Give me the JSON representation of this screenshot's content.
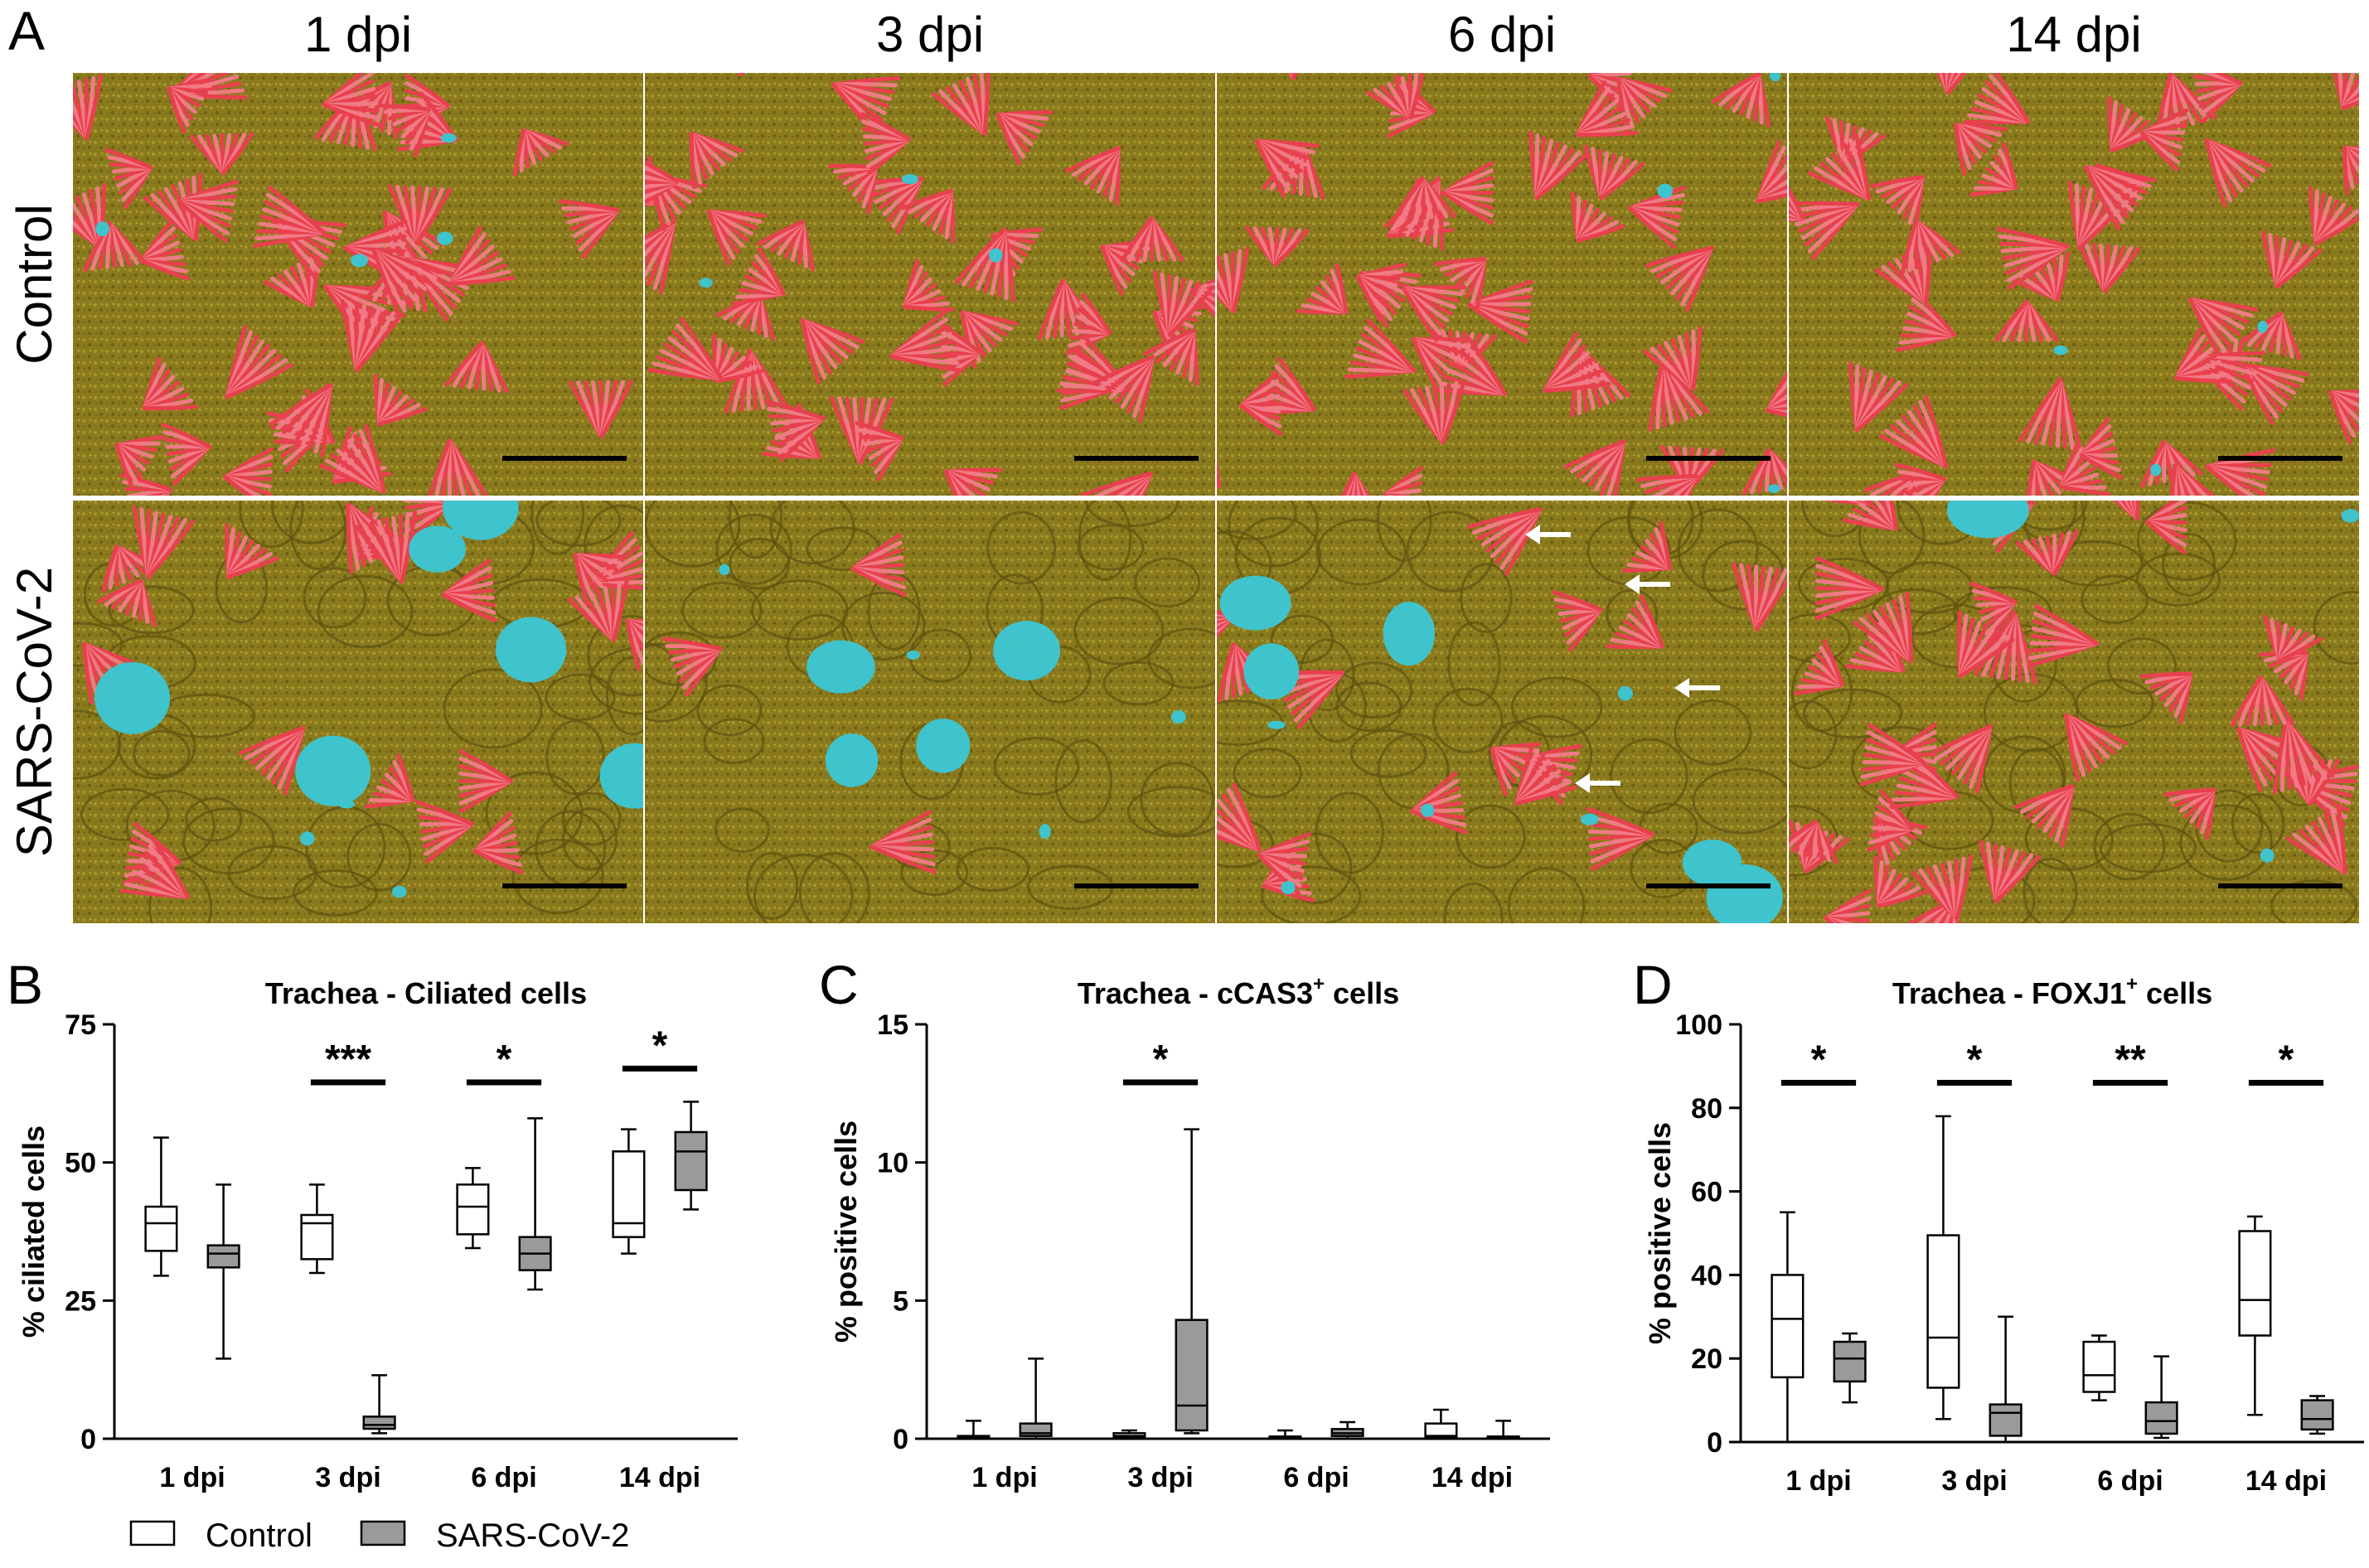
{
  "panel_a": {
    "letter": "A",
    "columns": [
      "1 dpi",
      "3 dpi",
      "6 dpi",
      "14 dpi"
    ],
    "rows": [
      "Control",
      "SARS-CoV-2"
    ],
    "colors": {
      "cilia": "#e8404e",
      "surface": "#8a7a1e",
      "surface_light": "#a8952e",
      "cell": "#3fc3cc"
    }
  },
  "legend": {
    "control": "Control",
    "sars": "SARS-CoV-2",
    "control_fill": "#ffffff",
    "sars_fill": "#9a9a9a"
  },
  "chart_data": [
    {
      "type": "box",
      "letter": "B",
      "title": "Trachea - Ciliated cells",
      "ylabel": "% ciliated cells",
      "ylim": [
        0,
        75
      ],
      "yticks": [
        0,
        25,
        50,
        75
      ],
      "categories": [
        "1 dpi",
        "3 dpi",
        "6 dpi",
        "14 dpi"
      ],
      "series": [
        {
          "name": "Control",
          "boxes": [
            {
              "min": 29.5,
              "q1": 34,
              "median": 39,
              "q3": 42,
              "max": 54.5
            },
            {
              "min": 30,
              "q1": 32.5,
              "median": 39,
              "q3": 40.5,
              "max": 46
            },
            {
              "min": 34.5,
              "q1": 37,
              "median": 42,
              "q3": 46,
              "max": 49
            },
            {
              "min": 33.5,
              "q1": 36.5,
              "median": 39,
              "q3": 52,
              "max": 56
            }
          ]
        },
        {
          "name": "SARS-CoV-2",
          "boxes": [
            {
              "min": 14.5,
              "q1": 31,
              "median": 33.5,
              "q3": 35,
              "max": 46
            },
            {
              "min": 1,
              "q1": 1.8,
              "median": 2.5,
              "q3": 4,
              "max": 11.5
            },
            {
              "min": 27,
              "q1": 30.5,
              "median": 33.5,
              "q3": 36.5,
              "max": 58
            },
            {
              "min": 41.5,
              "q1": 45,
              "median": 52,
              "q3": 55.5,
              "max": 61
            }
          ]
        }
      ],
      "significance": [
        "",
        "***",
        "*",
        "*"
      ]
    },
    {
      "type": "box",
      "letter": "C",
      "title": "Trachea - cCAS3",
      "title_sup": "+",
      "title_suffix": " cells",
      "ylabel": "% positive cells",
      "ylim": [
        0,
        15
      ],
      "yticks": [
        0,
        5,
        10,
        15
      ],
      "categories": [
        "1 dpi",
        "3 dpi",
        "6 dpi",
        "14 dpi"
      ],
      "series": [
        {
          "name": "Control",
          "boxes": [
            {
              "min": 0,
              "q1": 0.02,
              "median": 0.05,
              "q3": 0.1,
              "max": 0.65
            },
            {
              "min": 0,
              "q1": 0.05,
              "median": 0.1,
              "q3": 0.2,
              "max": 0.3
            },
            {
              "min": 0,
              "q1": 0.02,
              "median": 0.05,
              "q3": 0.08,
              "max": 0.3
            },
            {
              "min": 0,
              "q1": 0.05,
              "median": 0.1,
              "q3": 0.55,
              "max": 1.05
            }
          ]
        },
        {
          "name": "SARS-CoV-2",
          "boxes": [
            {
              "min": 0,
              "q1": 0.1,
              "median": 0.2,
              "q3": 0.55,
              "max": 2.9
            },
            {
              "min": 0.2,
              "q1": 0.3,
              "median": 1.2,
              "q3": 4.3,
              "max": 11.2
            },
            {
              "min": 0,
              "q1": 0.1,
              "median": 0.2,
              "q3": 0.35,
              "max": 0.6
            },
            {
              "min": 0,
              "q1": 0.02,
              "median": 0.05,
              "q3": 0.08,
              "max": 0.65
            }
          ]
        }
      ],
      "significance": [
        "",
        "*",
        "",
        ""
      ]
    },
    {
      "type": "box",
      "letter": "D",
      "title": "Trachea - FOXJ1",
      "title_sup": "+",
      "title_suffix": " cells",
      "ylabel": "% positive cells",
      "ylim": [
        0,
        100
      ],
      "yticks": [
        0,
        20,
        40,
        60,
        80,
        100
      ],
      "categories": [
        "1 dpi",
        "3 dpi",
        "6 dpi",
        "14 dpi"
      ],
      "series": [
        {
          "name": "Control",
          "boxes": [
            {
              "min": 0,
              "q1": 15.5,
              "median": 29.5,
              "q3": 40,
              "max": 55
            },
            {
              "min": 5.5,
              "q1": 13,
              "median": 25,
              "q3": 49.5,
              "max": 78
            },
            {
              "min": 10,
              "q1": 12,
              "median": 16,
              "q3": 24,
              "max": 25.5
            },
            {
              "min": 6.5,
              "q1": 25.5,
              "median": 34,
              "q3": 50.5,
              "max": 54
            }
          ]
        },
        {
          "name": "SARS-CoV-2",
          "boxes": [
            {
              "min": 9.5,
              "q1": 14.5,
              "median": 20,
              "q3": 24,
              "max": 26
            },
            {
              "min": 0,
              "q1": 1.5,
              "median": 7,
              "q3": 9,
              "max": 30
            },
            {
              "min": 1,
              "q1": 2,
              "median": 5,
              "q3": 9.5,
              "max": 20.5
            },
            {
              "min": 2,
              "q1": 3,
              "median": 5.5,
              "q3": 10,
              "max": 11
            }
          ]
        }
      ],
      "significance": [
        "*",
        "*",
        "**",
        "*"
      ]
    }
  ]
}
